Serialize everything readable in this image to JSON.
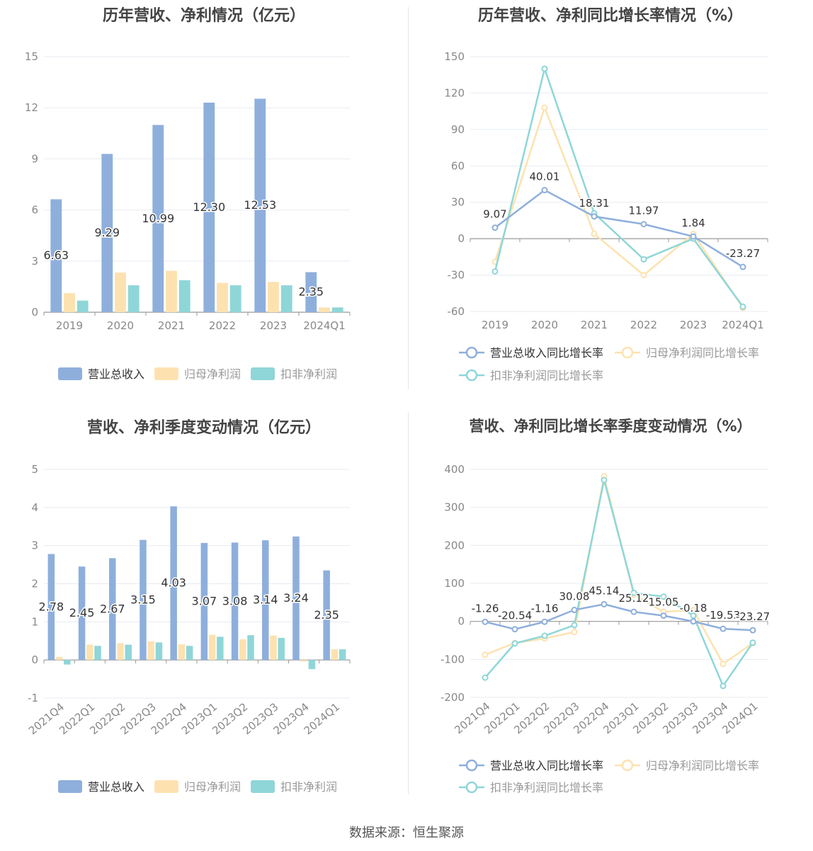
{
  "source_label": "数据来源：恒生聚源",
  "colors": {
    "revenue": "#8eafdc",
    "parent_np": "#fde2b0",
    "deducted_np": "#8fd6d8",
    "line_revenue": "#8eafdc",
    "line_parent": "#fde2b0",
    "line_deducted": "#8fd6d8",
    "grid": "#e8ebf3",
    "axis": "#999999",
    "label": "#333333"
  },
  "chart_data": [
    {
      "type": "bar",
      "title": "历年营收、净利情况（亿元）",
      "categories": [
        "2019",
        "2020",
        "2021",
        "2022",
        "2023",
        "2024Q1"
      ],
      "ylim": [
        0,
        15
      ],
      "yticks": [
        0,
        3,
        6,
        9,
        12,
        15
      ],
      "series": [
        {
          "name": "营业总收入",
          "values": [
            6.63,
            9.29,
            10.99,
            12.3,
            12.53,
            2.35
          ],
          "labels": [
            "6.63",
            "9.29",
            "10.99",
            "12.30",
            "12.53",
            "2.35"
          ]
        },
        {
          "name": "归母净利润",
          "values": [
            1.12,
            2.33,
            2.43,
            1.72,
            1.78,
            0.28
          ]
        },
        {
          "name": "扣非净利润",
          "values": [
            0.68,
            1.58,
            1.88,
            1.58,
            1.58,
            0.28
          ]
        }
      ],
      "legend": "bottom"
    },
    {
      "type": "line",
      "title": "历年营收、净利同比增长率情况（%）",
      "categories": [
        "2019",
        "2020",
        "2021",
        "2022",
        "2023",
        "2024Q1"
      ],
      "ylim": [
        -60,
        150
      ],
      "yticks": [
        -60,
        -30,
        0,
        30,
        60,
        90,
        120,
        150
      ],
      "series": [
        {
          "name": "营业总收入同比增长率",
          "values": [
            9.07,
            40.01,
            18.31,
            11.97,
            1.84,
            -23.27
          ],
          "labels": [
            "9.07",
            "40.01",
            "18.31",
            "11.97",
            "1.84",
            "-23.27"
          ]
        },
        {
          "name": "归母净利润同比增长率",
          "values": [
            -19,
            108,
            4,
            -30,
            4,
            -57
          ]
        },
        {
          "name": "扣非净利润同比增长率",
          "values": [
            -27,
            140,
            21,
            -17,
            0,
            -56
          ]
        }
      ],
      "legend": "bottom"
    },
    {
      "type": "bar",
      "title": "营收、净利季度变动情况（亿元）",
      "categories": [
        "2021Q4",
        "2022Q1",
        "2022Q2",
        "2022Q3",
        "2022Q4",
        "2023Q1",
        "2023Q2",
        "2023Q3",
        "2023Q4",
        "2024Q1"
      ],
      "ylim": [
        -1,
        5
      ],
      "yticks": [
        -1,
        0,
        1,
        2,
        3,
        4,
        5
      ],
      "series": [
        {
          "name": "营业总收入",
          "values": [
            2.78,
            2.45,
            2.67,
            3.15,
            4.03,
            3.07,
            3.08,
            3.14,
            3.24,
            2.35
          ],
          "labels": [
            "2.78",
            "2.45",
            "2.67",
            "3.15",
            "4.03",
            "3.07",
            "3.08",
            "3.14",
            "3.24",
            "2.35"
          ]
        },
        {
          "name": "归母净利润",
          "values": [
            0.08,
            0.4,
            0.44,
            0.49,
            0.41,
            0.66,
            0.54,
            0.64,
            -0.04,
            0.28
          ]
        },
        {
          "name": "扣非净利润",
          "values": [
            -0.12,
            0.37,
            0.4,
            0.46,
            0.37,
            0.61,
            0.65,
            0.58,
            -0.24,
            0.28
          ]
        }
      ],
      "legend": "bottom"
    },
    {
      "type": "line",
      "title": "营收、净利同比增长率季度变动情况（%）",
      "categories": [
        "2021Q4",
        "2022Q1",
        "2022Q2",
        "2022Q3",
        "2022Q4",
        "2023Q1",
        "2023Q2",
        "2023Q3",
        "2023Q4",
        "2024Q1"
      ],
      "ylim": [
        -200,
        400
      ],
      "yticks": [
        -200,
        -100,
        0,
        100,
        200,
        300,
        400
      ],
      "series": [
        {
          "name": "营业总收入同比增长率",
          "values": [
            -1.26,
            -20.54,
            -1.16,
            30.08,
            45.14,
            25.12,
            15.05,
            -0.18,
            -19.53,
            -23.27
          ],
          "labels": [
            "-1.26",
            "-20.54",
            "-1.16",
            "30.08",
            "45.14",
            "25.12",
            "15.05",
            "-0.18",
            "-19.53",
            "-23.27"
          ]
        },
        {
          "name": "归母净利润同比增长率",
          "values": [
            -88,
            -57,
            -45,
            -28,
            382,
            70,
            25,
            30,
            -112,
            -57
          ]
        },
        {
          "name": "扣非净利润同比增长率",
          "values": [
            -148,
            -58,
            -38,
            -10,
            372,
            75,
            65,
            15,
            -170,
            -56
          ]
        }
      ],
      "legend": "bottom"
    }
  ]
}
